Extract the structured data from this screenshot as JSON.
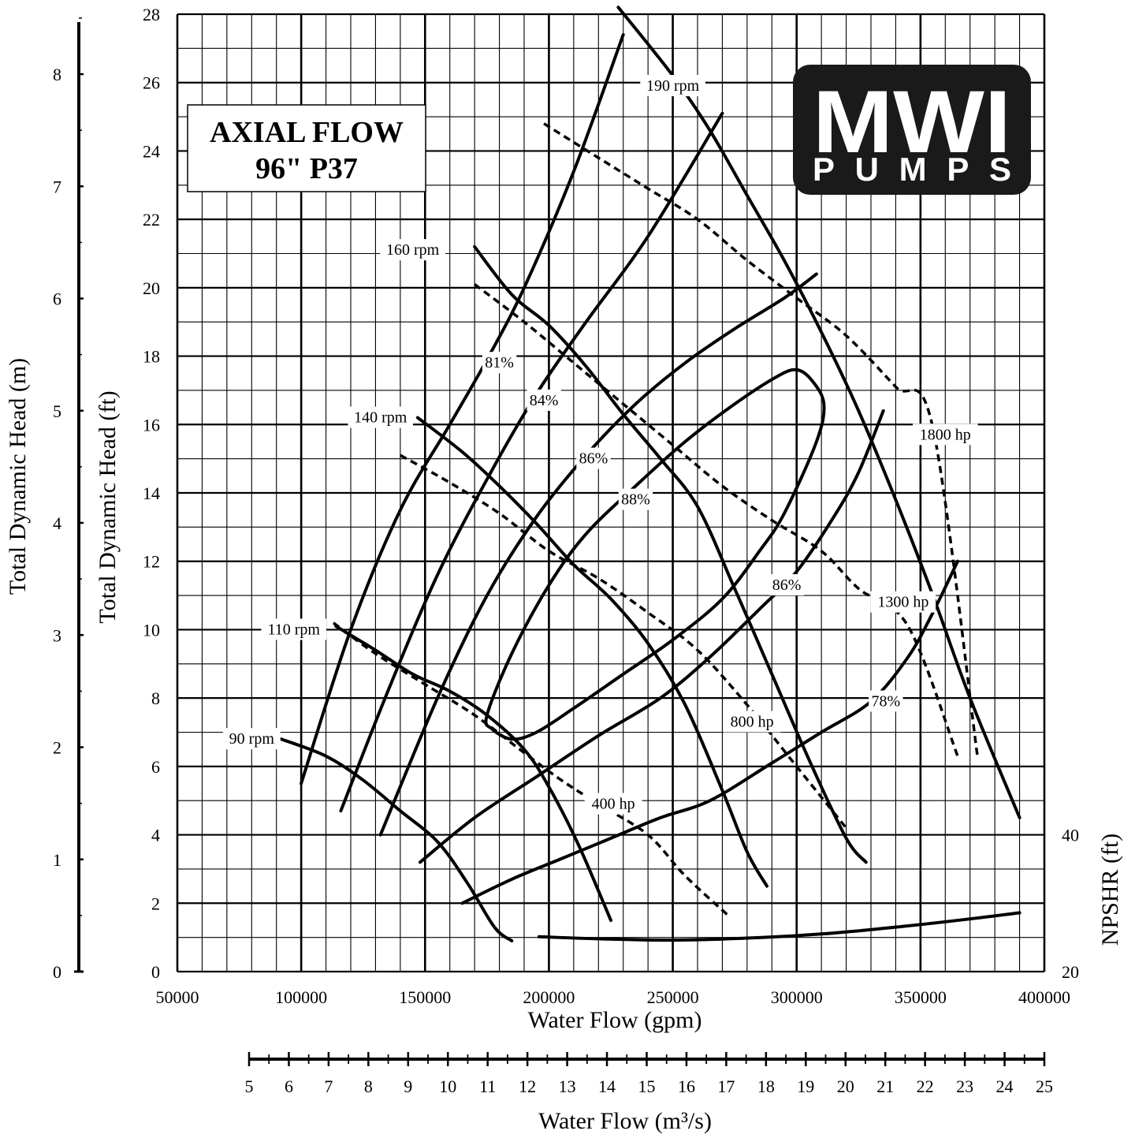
{
  "chart_data": {
    "type": "line",
    "title": "AXIAL FLOW",
    "subtitle": "96\" P37",
    "logo": {
      "main": "MWI",
      "sub": "PUMPS"
    },
    "xlabel": "Water Flow (gpm)",
    "ylabel": "Total Dynamic Head (ft)",
    "ylabel_m": "Total Dynamic Head (m)",
    "x2label": "Water Flow (m³/s)",
    "npshr_label": "NPSHR (ft)",
    "xlim": [
      50000,
      400000
    ],
    "ylim": [
      0,
      28
    ],
    "ylim_m": [
      0,
      8.5344
    ],
    "x2lim": [
      5,
      25
    ],
    "npshr_lim": [
      20,
      40
    ],
    "grid": true,
    "x_ticks": [
      50000,
      100000,
      150000,
      200000,
      250000,
      300000,
      350000,
      400000
    ],
    "y_ticks": [
      0,
      2,
      4,
      6,
      8,
      10,
      12,
      14,
      16,
      18,
      20,
      22,
      24,
      26,
      28
    ],
    "y_m_ticks": [
      0,
      1,
      2,
      3,
      4,
      5,
      6,
      7,
      8
    ],
    "x2_ticks": [
      5,
      6,
      7,
      8,
      9,
      10,
      11,
      12,
      13,
      14,
      15,
      16,
      17,
      18,
      19,
      20,
      21,
      22,
      23,
      24,
      25
    ],
    "npshr_ticks": [
      40,
      20
    ],
    "speed_curves": [
      {
        "label": "190 rpm",
        "label_at": [
          250000,
          25.9
        ],
        "points": [
          [
            228000,
            28.2
          ],
          [
            250000,
            26.2
          ],
          [
            265000,
            24.6
          ],
          [
            280000,
            22.7
          ],
          [
            295000,
            20.8
          ],
          [
            310000,
            18.7
          ],
          [
            325000,
            16.4
          ],
          [
            340000,
            13.8
          ],
          [
            355000,
            11.0
          ],
          [
            370000,
            8.0
          ],
          [
            390000,
            4.5
          ]
        ]
      },
      {
        "label": "160 rpm",
        "label_at": [
          145000,
          21.1
        ],
        "points": [
          [
            170000,
            21.2
          ],
          [
            185000,
            19.8
          ],
          [
            200000,
            18.9
          ],
          [
            215000,
            17.7
          ],
          [
            230000,
            16.3
          ],
          [
            245000,
            15.0
          ],
          [
            260000,
            13.6
          ],
          [
            275000,
            11.2
          ],
          [
            290000,
            8.7
          ],
          [
            305000,
            6.2
          ],
          [
            320000,
            3.9
          ],
          [
            328000,
            3.2
          ]
        ]
      },
      {
        "label": "140 rpm",
        "label_at": [
          132000,
          16.2
        ],
        "points": [
          [
            147000,
            16.2
          ],
          [
            165000,
            15.2
          ],
          [
            180000,
            14.2
          ],
          [
            195000,
            13.1
          ],
          [
            210000,
            11.9
          ],
          [
            225000,
            10.9
          ],
          [
            240000,
            9.6
          ],
          [
            255000,
            7.8
          ],
          [
            270000,
            5.3
          ],
          [
            280000,
            3.5
          ],
          [
            288000,
            2.5
          ]
        ]
      },
      {
        "label": "110 rpm",
        "label_at": [
          97000,
          10.0
        ],
        "points": [
          [
            114000,
            10.1
          ],
          [
            130000,
            9.4
          ],
          [
            145000,
            8.7
          ],
          [
            160000,
            8.2
          ],
          [
            175000,
            7.5
          ],
          [
            190000,
            6.5
          ],
          [
            200000,
            5.4
          ],
          [
            212000,
            3.7
          ],
          [
            225000,
            1.5
          ]
        ]
      },
      {
        "label": "90 rpm",
        "label_at": [
          80000,
          6.8
        ],
        "points": [
          [
            92000,
            6.8
          ],
          [
            110000,
            6.3
          ],
          [
            125000,
            5.6
          ],
          [
            140000,
            4.7
          ],
          [
            155000,
            3.8
          ],
          [
            167000,
            2.6
          ],
          [
            178000,
            1.3
          ],
          [
            185000,
            0.9
          ]
        ]
      }
    ],
    "power_curves": [
      {
        "label": "1800 hp",
        "label_at": [
          360000,
          15.7
        ],
        "points": [
          [
            198000,
            24.8
          ],
          [
            220000,
            23.8
          ],
          [
            240000,
            22.9
          ],
          [
            260000,
            22.0
          ],
          [
            280000,
            20.8
          ],
          [
            300000,
            19.7
          ],
          [
            320000,
            18.6
          ],
          [
            340000,
            17.1
          ],
          [
            355000,
            15.9
          ],
          [
            373000,
            6.3
          ]
        ]
      },
      {
        "label": "1300 hp",
        "label_at": [
          343000,
          10.8
        ],
        "points": [
          [
            170000,
            20.1
          ],
          [
            190000,
            19.0
          ],
          [
            210000,
            17.8
          ],
          [
            230000,
            16.6
          ],
          [
            250000,
            15.4
          ],
          [
            270000,
            14.2
          ],
          [
            290000,
            13.2
          ],
          [
            310000,
            12.3
          ],
          [
            325000,
            11.2
          ],
          [
            345000,
            10.1
          ],
          [
            365000,
            6.3
          ]
        ]
      },
      {
        "label": "800 hp",
        "label_at": [
          282000,
          7.3
        ],
        "points": [
          [
            140000,
            15.1
          ],
          [
            160000,
            14.3
          ],
          [
            180000,
            13.4
          ],
          [
            200000,
            12.3
          ],
          [
            220000,
            11.5
          ],
          [
            240000,
            10.5
          ],
          [
            260000,
            9.4
          ],
          [
            280000,
            7.8
          ],
          [
            300000,
            6.0
          ],
          [
            320000,
            4.2
          ]
        ]
      },
      {
        "label": "400 hp",
        "label_at": [
          226000,
          4.9
        ],
        "points": [
          [
            113000,
            10.2
          ],
          [
            130000,
            9.3
          ],
          [
            150000,
            8.4
          ],
          [
            170000,
            7.5
          ],
          [
            190000,
            6.4
          ],
          [
            205000,
            5.6
          ],
          [
            220000,
            4.9
          ],
          [
            240000,
            4.0
          ],
          [
            255000,
            2.8
          ],
          [
            273000,
            1.6
          ]
        ]
      }
    ],
    "efficiency_curves": [
      {
        "label": "81%",
        "label_at": [
          180000,
          17.8
        ],
        "closed": false,
        "points": [
          [
            100000,
            5.5
          ],
          [
            120000,
            10.0
          ],
          [
            140000,
            13.5
          ],
          [
            160000,
            16.0
          ],
          [
            175000,
            17.9
          ],
          [
            190000,
            20.0
          ],
          [
            210000,
            23.4
          ],
          [
            230000,
            27.4
          ]
        ]
      },
      {
        "label": "84%",
        "label_at": [
          198000,
          16.7
        ],
        "closed": false,
        "points": [
          [
            116000,
            4.7
          ],
          [
            135000,
            8.2
          ],
          [
            155000,
            11.6
          ],
          [
            175000,
            14.4
          ],
          [
            195000,
            16.9
          ],
          [
            215000,
            19.0
          ],
          [
            240000,
            21.5
          ],
          [
            270000,
            25.1
          ]
        ]
      },
      {
        "label": "86%",
        "label_at": [
          218000,
          15.0
        ],
        "closed": false,
        "points": [
          [
            132000,
            4.0
          ],
          [
            155000,
            8.0
          ],
          [
            175000,
            11.0
          ],
          [
            195000,
            13.3
          ],
          [
            215000,
            15.1
          ],
          [
            235000,
            16.6
          ],
          [
            255000,
            17.8
          ],
          [
            275000,
            18.8
          ],
          [
            295000,
            19.7
          ],
          [
            308000,
            20.4
          ]
        ]
      },
      {
        "label": "88%",
        "label_at": [
          235000,
          13.8
        ],
        "closed": true,
        "points": [
          [
            175000,
            7.5
          ],
          [
            185000,
            9.3
          ],
          [
            200000,
            11.3
          ],
          [
            215000,
            12.8
          ],
          [
            235000,
            14.2
          ],
          [
            255000,
            15.5
          ],
          [
            275000,
            16.6
          ],
          [
            292000,
            17.4
          ],
          [
            300000,
            17.6
          ],
          [
            306000,
            17.3
          ],
          [
            311000,
            16.6
          ],
          [
            308000,
            15.5
          ],
          [
            295000,
            13.4
          ],
          [
            285000,
            12.3
          ],
          [
            270000,
            10.9
          ],
          [
            250000,
            9.7
          ],
          [
            230000,
            8.7
          ],
          [
            210000,
            7.7
          ],
          [
            195000,
            7.0
          ],
          [
            185000,
            6.8
          ],
          [
            177000,
            7.1
          ]
        ]
      },
      {
        "label": "86%",
        "label_at": [
          296000,
          11.3
        ],
        "closed": false,
        "points": [
          [
            148000,
            3.2
          ],
          [
            170000,
            4.5
          ],
          [
            195000,
            5.7
          ],
          [
            220000,
            6.9
          ],
          [
            245000,
            8.0
          ],
          [
            265000,
            9.2
          ],
          [
            285000,
            10.6
          ],
          [
            300000,
            11.7
          ],
          [
            315000,
            13.3
          ],
          [
            325000,
            14.6
          ],
          [
            335000,
            16.4
          ]
        ]
      },
      {
        "label": "78%",
        "label_at": [
          336000,
          7.9
        ],
        "closed": false,
        "points": [
          [
            165000,
            2.0
          ],
          [
            185000,
            2.7
          ],
          [
            205000,
            3.3
          ],
          [
            225000,
            3.9
          ],
          [
            245000,
            4.5
          ],
          [
            265000,
            5.0
          ],
          [
            290000,
            6.1
          ],
          [
            310000,
            7.0
          ],
          [
            330000,
            7.9
          ],
          [
            345000,
            9.2
          ],
          [
            355000,
            10.5
          ],
          [
            365000,
            12.0
          ]
        ]
      }
    ],
    "npshr_curve": {
      "points": [
        [
          196000,
          25.1
        ],
        [
          220000,
          24.8
        ],
        [
          250000,
          24.6
        ],
        [
          280000,
          24.9
        ],
        [
          310000,
          25.5
        ],
        [
          340000,
          26.5
        ],
        [
          370000,
          27.7
        ],
        [
          390000,
          28.6
        ]
      ]
    }
  }
}
